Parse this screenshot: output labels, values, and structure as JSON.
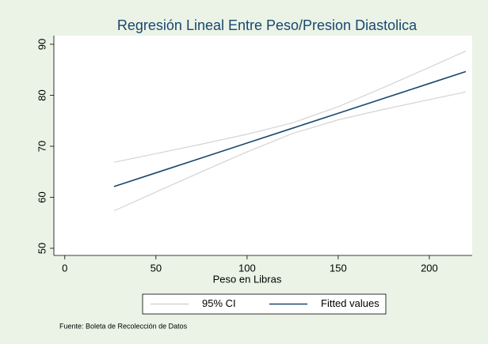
{
  "chart_data": {
    "type": "line",
    "title": "Regresión Lineal Entre Peso/Presion Diastolica",
    "x_label": "Peso en Libras",
    "note": "Fuente: Boleta de Recolección de Datos",
    "x": [
      27,
      50,
      75,
      100,
      125,
      150,
      175,
      200,
      220
    ],
    "series": [
      {
        "name": "95% CI",
        "color": "#d4d4d4",
        "upper": [
          66.86,
          68.55,
          70.42,
          72.36,
          74.6,
          77.75,
          81.54,
          85.47,
          88.66
        ],
        "lower": [
          57.34,
          61.03,
          65.0,
          68.9,
          72.5,
          75.19,
          77.24,
          79.15,
          80.64
        ]
      },
      {
        "name": "Fitted values",
        "color": "#1a476f",
        "values": [
          62.1,
          64.79,
          67.71,
          70.63,
          73.55,
          76.47,
          79.39,
          82.31,
          84.65
        ]
      }
    ],
    "xlim": [
      -6,
      223.5
    ],
    "xticks": [
      0,
      50,
      100,
      150,
      200
    ],
    "ylim": [
      48.6,
      91.7
    ],
    "yticks": [
      50,
      60,
      70,
      80,
      90
    ],
    "grid": false,
    "legend": "bottom"
  }
}
